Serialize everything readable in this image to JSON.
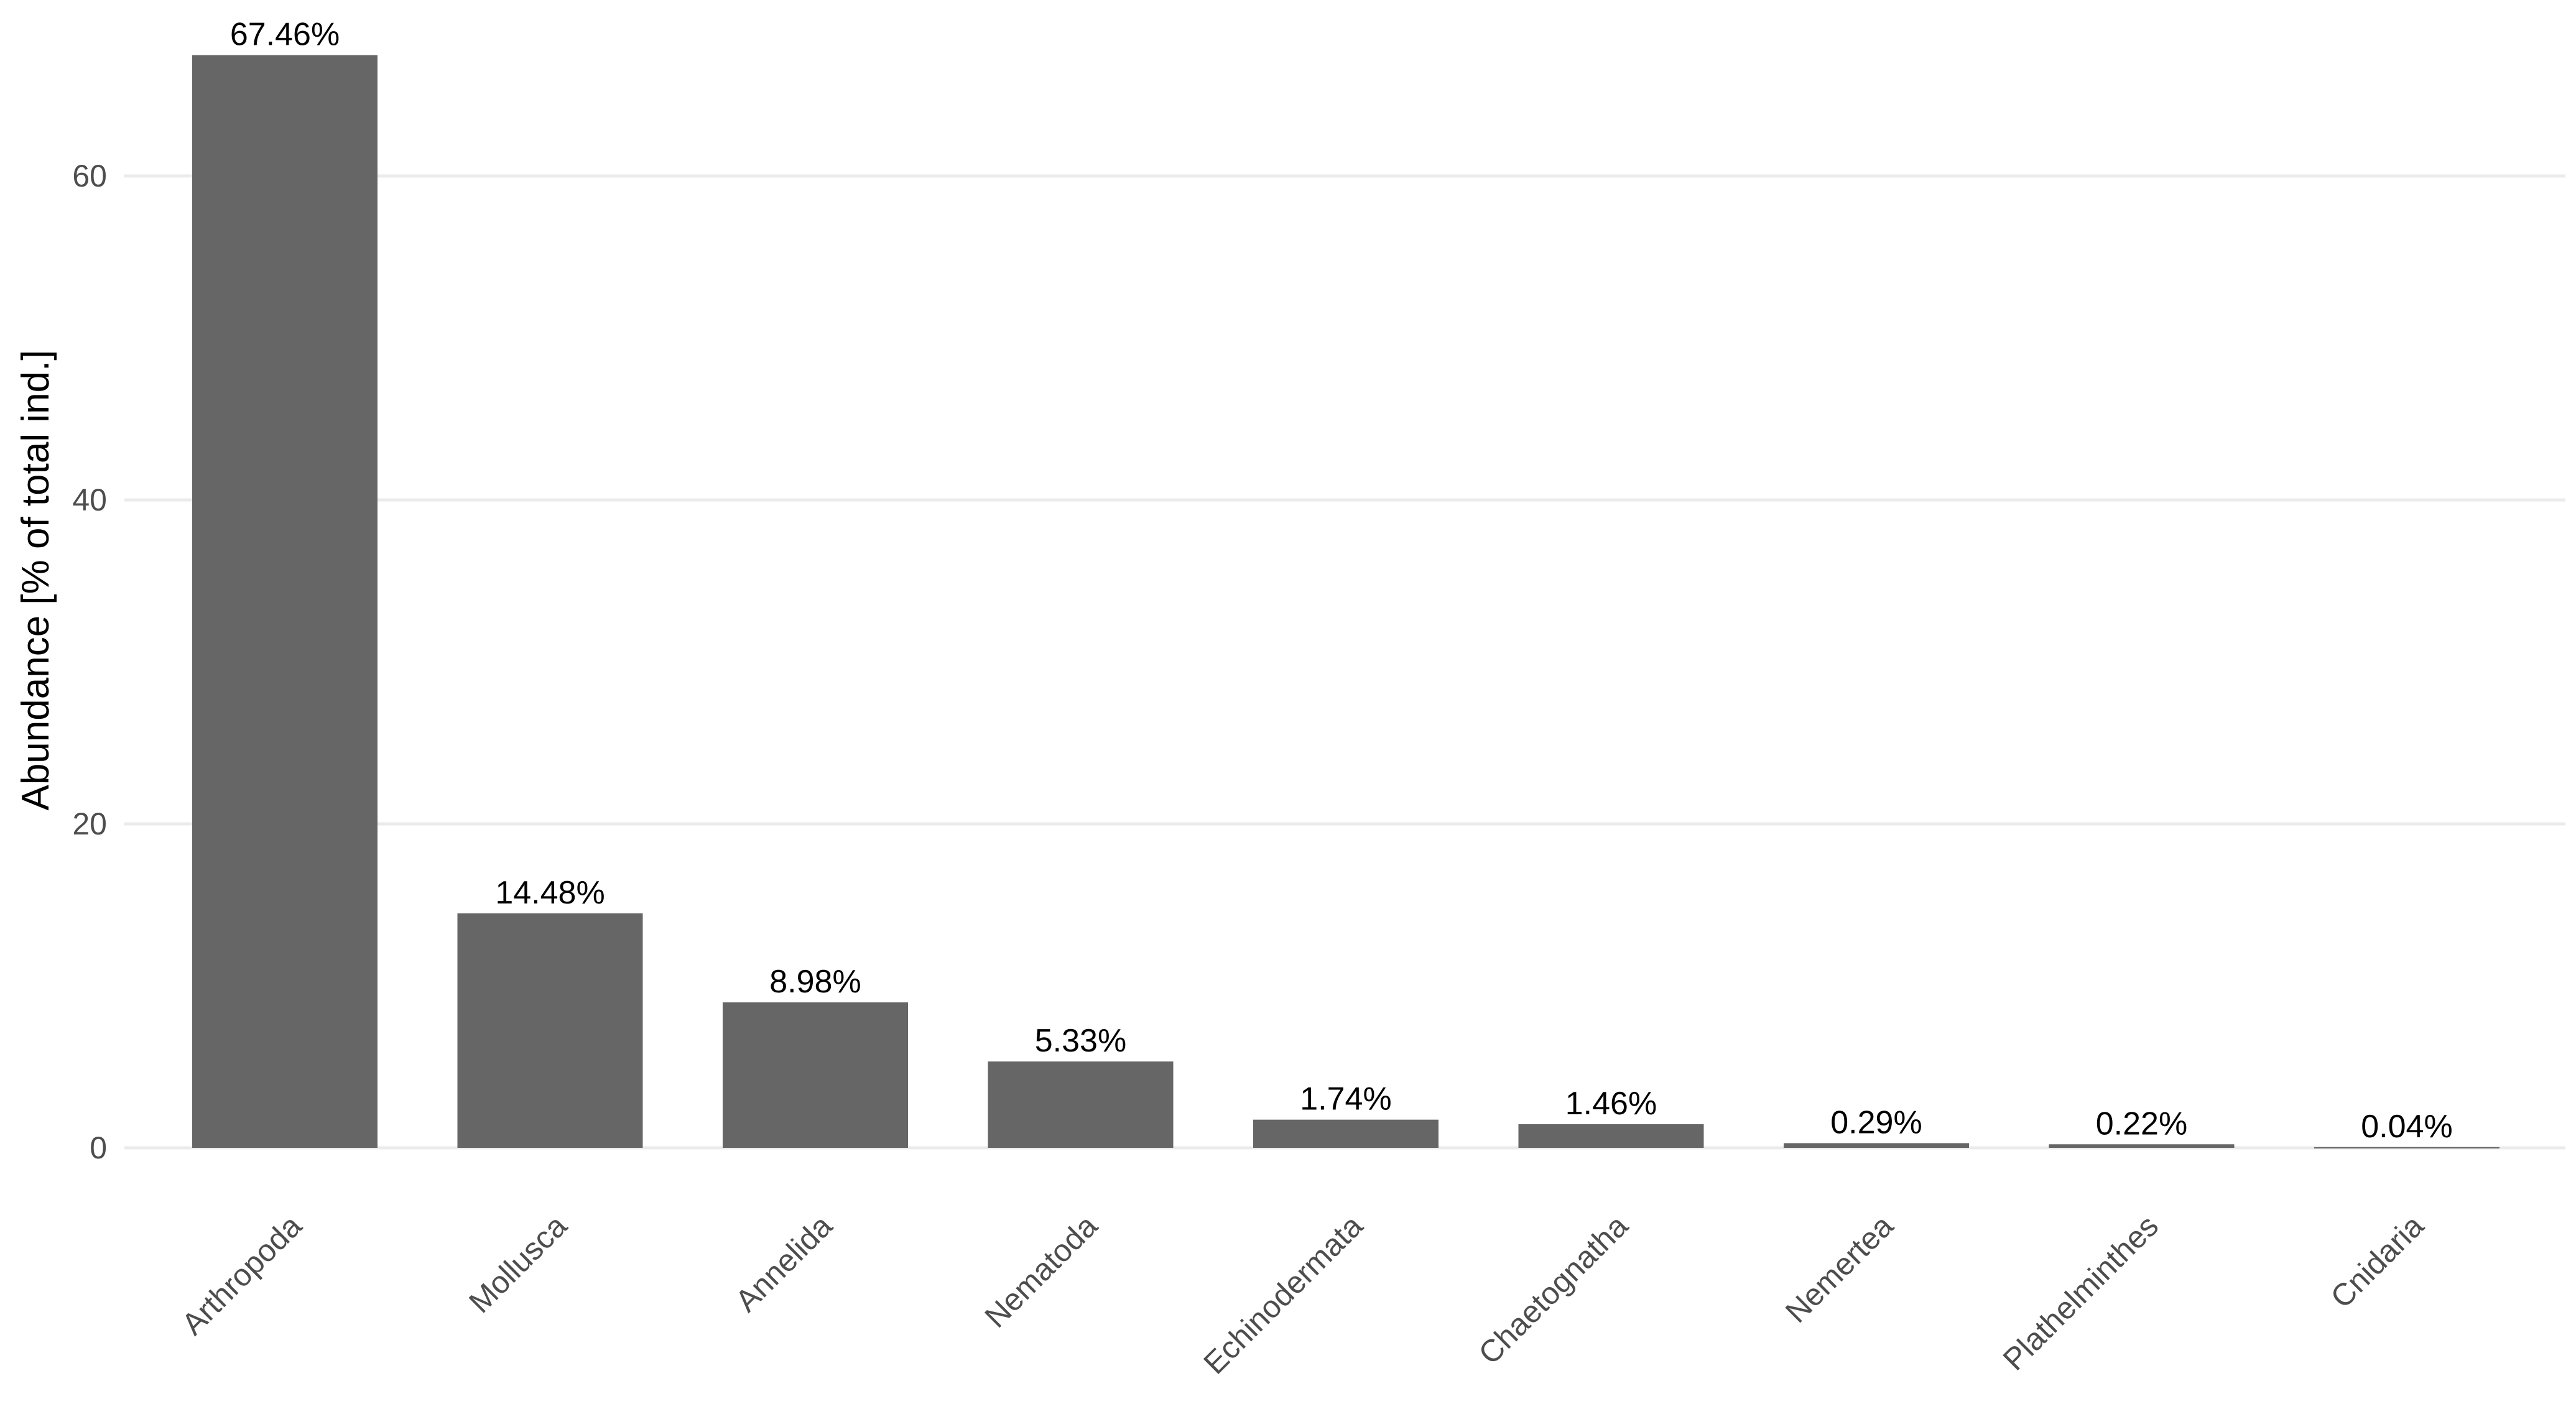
{
  "chart_data": {
    "type": "bar",
    "title": "",
    "xlabel": "",
    "ylabel": "Abundance [% of total ind.]",
    "ylim": [
      0,
      70
    ],
    "y_ticks": [
      0,
      20,
      40,
      60
    ],
    "grid": true,
    "categories": [
      "Arthropoda",
      "Mollusca",
      "Annelida",
      "Nematoda",
      "Echinodermata",
      "Chaetognatha",
      "Nemertea",
      "Plathelminthes",
      "Cnidaria"
    ],
    "values": [
      67.46,
      14.48,
      8.98,
      5.33,
      1.74,
      1.46,
      0.29,
      0.22,
      0.04
    ],
    "data_labels": [
      "67.46%",
      "14.48%",
      "8.98%",
      "5.33%",
      "1.74%",
      "1.46%",
      "0.29%",
      "0.22%",
      "0.04%"
    ],
    "bar_color": "#666666",
    "grid_color": "#ebebeb"
  }
}
